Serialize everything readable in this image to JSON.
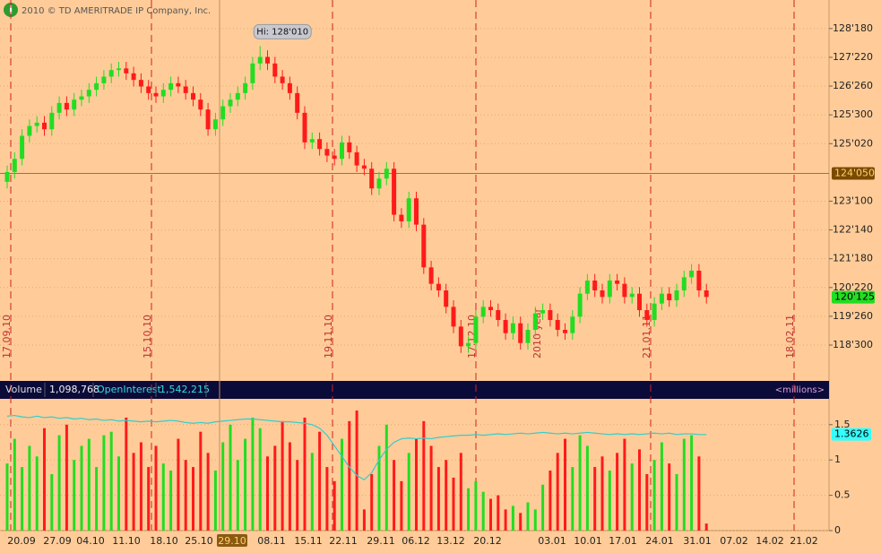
{
  "header": {
    "copyright": "2010 © TD AMERITRADE IP Company, Inc."
  },
  "chart_data": [
    {
      "type": "candlestick",
      "open": [
        123.9,
        124.2,
        124.6,
        125.3,
        125.6,
        125.7,
        125.5,
        126.0,
        126.3,
        126.1,
        126.4,
        126.5,
        126.7,
        126.9,
        127.1,
        127.3,
        127.35,
        127.2,
        127.0,
        126.8,
        126.6,
        126.5,
        126.7,
        126.9,
        126.8,
        126.6,
        126.4,
        126.1,
        125.5,
        125.8,
        126.2,
        126.4,
        126.6,
        126.9,
        127.5,
        127.7,
        127.5,
        127.1,
        126.9,
        126.6,
        126.0,
        125.1,
        125.2,
        124.9,
        124.7,
        124.6,
        125.1,
        124.8,
        124.4,
        124.3,
        123.7,
        124.0,
        124.3,
        122.9,
        122.7,
        123.4,
        122.6,
        121.3,
        120.8,
        120.6,
        120.1,
        119.5,
        118.9,
        119.0,
        119.8,
        120.1,
        120.0,
        119.7,
        119.3,
        119.6,
        119.0,
        119.4,
        119.9,
        120.0,
        119.7,
        119.4,
        119.3,
        119.8,
        120.5,
        120.9,
        120.6,
        120.4,
        120.9,
        120.8,
        120.4,
        120.5,
        120.0,
        119.7,
        120.2,
        120.5,
        120.3,
        120.6,
        121.0,
        121.2,
        120.6
      ],
      "high": [
        124.4,
        124.8,
        125.5,
        125.8,
        125.9,
        125.9,
        126.2,
        126.5,
        126.5,
        126.6,
        126.7,
        126.9,
        127.1,
        127.3,
        127.5,
        127.55,
        127.55,
        127.4,
        127.2,
        127.0,
        126.8,
        126.9,
        127.1,
        127.1,
        127.0,
        126.8,
        126.6,
        126.3,
        126.0,
        126.4,
        126.6,
        126.8,
        127.1,
        127.7,
        128.03,
        127.9,
        127.7,
        127.3,
        127.1,
        126.8,
        126.2,
        125.4,
        125.4,
        125.1,
        124.9,
        125.3,
        125.3,
        125.0,
        124.6,
        124.5,
        124.2,
        124.5,
        124.5,
        123.1,
        123.6,
        123.6,
        122.8,
        121.5,
        121.0,
        120.8,
        120.3,
        119.7,
        119.2,
        120.0,
        120.3,
        120.3,
        120.2,
        119.9,
        119.8,
        119.8,
        119.6,
        120.1,
        120.2,
        120.2,
        119.9,
        119.6,
        120.0,
        120.7,
        121.1,
        121.1,
        120.8,
        121.1,
        121.1,
        121.0,
        120.7,
        120.7,
        120.2,
        120.4,
        120.7,
        120.7,
        120.8,
        121.2,
        121.4,
        121.4,
        120.8
      ],
      "low": [
        123.7,
        124.0,
        124.4,
        125.1,
        125.4,
        125.3,
        125.3,
        125.8,
        125.9,
        125.9,
        126.2,
        126.3,
        126.5,
        126.7,
        126.9,
        127.1,
        127.0,
        126.8,
        126.6,
        126.4,
        126.3,
        126.3,
        126.5,
        126.6,
        126.4,
        126.2,
        125.9,
        125.3,
        125.3,
        125.6,
        126.0,
        126.2,
        126.4,
        126.7,
        127.3,
        127.3,
        126.9,
        126.7,
        126.4,
        125.8,
        124.9,
        124.9,
        124.7,
        124.5,
        124.4,
        124.4,
        124.6,
        124.2,
        124.1,
        123.5,
        123.5,
        123.8,
        122.7,
        122.5,
        122.5,
        122.4,
        121.1,
        120.6,
        120.4,
        119.9,
        119.3,
        118.7,
        118.7,
        118.8,
        119.6,
        119.8,
        119.5,
        119.1,
        119.1,
        118.8,
        118.8,
        119.2,
        119.7,
        119.5,
        119.2,
        119.1,
        119.1,
        119.6,
        120.3,
        120.4,
        120.2,
        120.2,
        120.6,
        120.2,
        120.2,
        119.8,
        119.5,
        119.5,
        120.0,
        120.1,
        120.1,
        120.4,
        120.8,
        120.4,
        120.2
      ],
      "close": [
        124.2,
        124.6,
        125.3,
        125.6,
        125.7,
        125.5,
        126.0,
        126.3,
        126.1,
        126.4,
        126.5,
        126.7,
        126.9,
        127.1,
        127.3,
        127.35,
        127.2,
        127.0,
        126.8,
        126.6,
        126.5,
        126.7,
        126.9,
        126.8,
        126.6,
        126.4,
        126.1,
        125.5,
        125.8,
        126.2,
        126.4,
        126.6,
        126.9,
        127.5,
        127.7,
        127.5,
        127.1,
        126.9,
        126.6,
        126.0,
        125.1,
        125.2,
        124.9,
        124.7,
        124.6,
        125.1,
        124.8,
        124.4,
        124.3,
        123.7,
        124.0,
        124.3,
        122.9,
        122.7,
        123.4,
        122.6,
        121.3,
        120.8,
        120.6,
        120.1,
        119.5,
        118.9,
        119.0,
        119.8,
        120.1,
        120.0,
        119.7,
        119.3,
        119.6,
        119.0,
        119.4,
        119.9,
        120.0,
        119.7,
        119.4,
        119.3,
        119.8,
        120.5,
        120.9,
        120.6,
        120.4,
        120.9,
        120.8,
        120.4,
        120.5,
        120.0,
        119.7,
        120.2,
        120.5,
        120.3,
        120.6,
        121.0,
        121.2,
        120.6,
        120.4
      ],
      "up_color": "#22dd22",
      "down_color": "#ff1a1a",
      "ylim": [
        118.12,
        129.43
      ],
      "yticks": [
        {
          "value": 128.5625,
          "label": "128'180"
        },
        {
          "value": 127.6875,
          "label": "127'220"
        },
        {
          "value": 126.8125,
          "label": "126'260"
        },
        {
          "value": 125.9375,
          "label": "125'300"
        },
        {
          "value": 125.0625,
          "label": "125'020"
        },
        {
          "value": 123.3125,
          "label": "123'100"
        },
        {
          "value": 122.4375,
          "label": "122'140"
        },
        {
          "value": 121.5625,
          "label": "121'180"
        },
        {
          "value": 120.6875,
          "label": "120'220"
        },
        {
          "value": 119.8125,
          "label": "119'260"
        },
        {
          "value": 118.9375,
          "label": "118'300"
        }
      ],
      "high_annotation": "Hi: 128'010",
      "crosshair": {
        "value": 124.15625,
        "label": "124'050"
      },
      "last_price": {
        "value": 120.390625,
        "label": "120'125"
      },
      "period_labels": [
        "17.09.10",
        "15.10.10",
        "19.11.10",
        "17.12.10",
        "2010 year",
        "21.01.11",
        "18.02.11"
      ]
    },
    {
      "type": "volume",
      "series": [
        {
          "name": "Volume",
          "readout": "1,098,768",
          "values": [
            0.95,
            1.3,
            0.9,
            1.2,
            1.05,
            1.45,
            0.8,
            1.35,
            1.5,
            1.0,
            1.2,
            1.3,
            0.9,
            1.35,
            1.4,
            1.05,
            1.6,
            1.1,
            1.25,
            0.9,
            1.2,
            0.95,
            0.85,
            1.3,
            1.0,
            0.9,
            1.4,
            1.1,
            0.85,
            1.25,
            1.5,
            1.0,
            1.3,
            1.6,
            1.45,
            1.05,
            1.2,
            1.55,
            1.25,
            1.0,
            1.6,
            1.1,
            1.4,
            0.9,
            0.7,
            1.3,
            1.55,
            1.7,
            0.3,
            0.8,
            1.2,
            1.5,
            1.0,
            0.7,
            1.1,
            1.3,
            1.55,
            1.2,
            0.9,
            1.0,
            0.75,
            1.1,
            0.6,
            0.7,
            0.55,
            0.45,
            0.5,
            0.3,
            0.35,
            0.25,
            0.4,
            0.3,
            0.65,
            0.85,
            1.1,
            1.3,
            0.9,
            1.35,
            1.2,
            0.9,
            1.05,
            0.85,
            1.1,
            1.3,
            0.95,
            1.15,
            0.8,
            1.0,
            1.25,
            0.95,
            0.8,
            1.3,
            1.35,
            1.05,
            0.1
          ]
        },
        {
          "name": "OpenInterest",
          "readout": "1,542,215",
          "color": "#33cccc",
          "values": [
            1.62,
            1.63,
            1.61,
            1.6,
            1.62,
            1.6,
            1.61,
            1.59,
            1.6,
            1.58,
            1.59,
            1.57,
            1.58,
            1.56,
            1.57,
            1.55,
            1.56,
            1.55,
            1.54,
            1.55,
            1.54,
            1.55,
            1.56,
            1.55,
            1.53,
            1.52,
            1.53,
            1.52,
            1.54,
            1.55,
            1.56,
            1.57,
            1.58,
            1.58,
            1.57,
            1.56,
            1.55,
            1.54,
            1.54,
            1.53,
            1.52,
            1.5,
            1.45,
            1.35,
            1.2,
            1.05,
            0.9,
            0.78,
            0.72,
            0.82,
            1.0,
            1.15,
            1.25,
            1.3,
            1.31,
            1.3,
            1.31,
            1.3,
            1.32,
            1.33,
            1.34,
            1.35,
            1.35,
            1.36,
            1.35,
            1.36,
            1.37,
            1.36,
            1.37,
            1.38,
            1.37,
            1.38,
            1.39,
            1.38,
            1.37,
            1.38,
            1.37,
            1.38,
            1.39,
            1.38,
            1.37,
            1.36,
            1.37,
            1.36,
            1.37,
            1.36,
            1.37,
            1.38,
            1.37,
            1.38,
            1.36,
            1.37,
            1.37,
            1.36,
            1.36
          ]
        }
      ],
      "units": "<millions>",
      "ylim": [
        0,
        1.84
      ],
      "yticks": [
        0,
        0.5,
        1,
        1.5
      ],
      "marker": {
        "value": 1.3626,
        "label": "1.3626"
      }
    }
  ],
  "x_axis": {
    "labels": [
      "20.09",
      "27.09",
      "04.10",
      "11.10",
      "18.10",
      "25.10",
      "29.10",
      "08.11",
      "15.11",
      "22.11",
      "29.11",
      "06.12",
      "13.12",
      "20.12",
      "03.01",
      "10.01",
      "17.01",
      "24.01",
      "31.01",
      "07.02",
      "14.02",
      "21.02"
    ],
    "highlight": 6
  }
}
